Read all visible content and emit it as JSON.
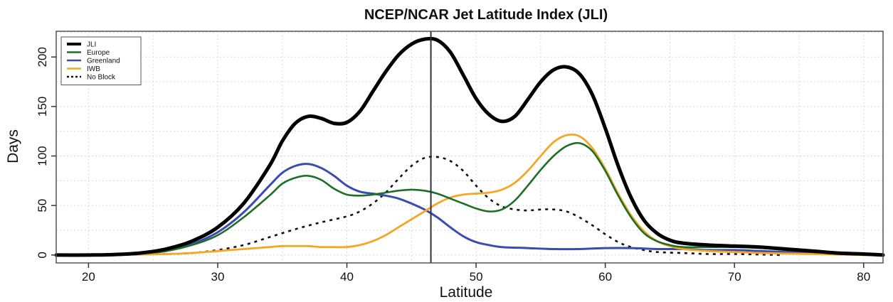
{
  "chart_data": {
    "type": "line",
    "title": "NCEP/NCAR Jet Latitude Index (JLI)",
    "xlabel": "Latitude",
    "ylabel": "Days",
    "xlim": [
      17.5,
      81.5
    ],
    "ylim": [
      -8,
      226
    ],
    "xticks": [
      20,
      30,
      40,
      50,
      60,
      70,
      80
    ],
    "yticks": [
      0,
      50,
      100,
      150,
      200
    ],
    "grid": true,
    "legend_position": "top-left",
    "vline": 46.5,
    "colors": {
      "JLI": "#000000",
      "Europe": "#1f6e27",
      "Greenland": "#3b4cb0",
      "IWB": "#f5a623",
      "No Block": "#111111",
      "vline": "#333333",
      "grid": "#d9d9d9",
      "frame": "#555555"
    },
    "series": [
      {
        "name": "JLI",
        "style": "solid",
        "points": [
          [
            17.5,
            0
          ],
          [
            20,
            0
          ],
          [
            22,
            0.5
          ],
          [
            24,
            2
          ],
          [
            26,
            6
          ],
          [
            28,
            14
          ],
          [
            30,
            28
          ],
          [
            32,
            52
          ],
          [
            34,
            90
          ],
          [
            35,
            115
          ],
          [
            36,
            133
          ],
          [
            37,
            140
          ],
          [
            38,
            138
          ],
          [
            39,
            133
          ],
          [
            40,
            134
          ],
          [
            41,
            145
          ],
          [
            42,
            165
          ],
          [
            43,
            185
          ],
          [
            44,
            202
          ],
          [
            45,
            213
          ],
          [
            46,
            218
          ],
          [
            47,
            217
          ],
          [
            48,
            205
          ],
          [
            49,
            182
          ],
          [
            50,
            158
          ],
          [
            51,
            142
          ],
          [
            52,
            135
          ],
          [
            53,
            140
          ],
          [
            54,
            157
          ],
          [
            55,
            175
          ],
          [
            56,
            187
          ],
          [
            57,
            190
          ],
          [
            58,
            183
          ],
          [
            59,
            162
          ],
          [
            60,
            128
          ],
          [
            61,
            90
          ],
          [
            62,
            58
          ],
          [
            63,
            35
          ],
          [
            64,
            22
          ],
          [
            65,
            15
          ],
          [
            66,
            12
          ],
          [
            68,
            10
          ],
          [
            70,
            9
          ],
          [
            72,
            8
          ],
          [
            74,
            6
          ],
          [
            76,
            4
          ],
          [
            78,
            2
          ],
          [
            80,
            1
          ],
          [
            81.5,
            0
          ]
        ]
      },
      {
        "name": "Europe",
        "style": "solid",
        "points": [
          [
            17.5,
            0
          ],
          [
            20,
            0
          ],
          [
            22,
            0.5
          ],
          [
            24,
            1.5
          ],
          [
            26,
            4
          ],
          [
            28,
            10
          ],
          [
            30,
            20
          ],
          [
            32,
            38
          ],
          [
            34,
            60
          ],
          [
            35,
            72
          ],
          [
            36,
            78
          ],
          [
            37,
            80
          ],
          [
            38,
            76
          ],
          [
            39,
            67
          ],
          [
            40,
            61
          ],
          [
            41,
            60
          ],
          [
            42,
            61
          ],
          [
            43,
            63
          ],
          [
            44,
            65
          ],
          [
            45,
            66
          ],
          [
            46,
            65
          ],
          [
            47,
            62
          ],
          [
            48,
            57
          ],
          [
            49,
            52
          ],
          [
            50,
            47
          ],
          [
            51,
            44
          ],
          [
            52,
            46
          ],
          [
            53,
            55
          ],
          [
            54,
            70
          ],
          [
            55,
            86
          ],
          [
            56,
            100
          ],
          [
            57,
            110
          ],
          [
            58,
            113
          ],
          [
            59,
            105
          ],
          [
            60,
            85
          ],
          [
            61,
            60
          ],
          [
            62,
            38
          ],
          [
            63,
            22
          ],
          [
            64,
            14
          ],
          [
            65,
            10
          ],
          [
            66,
            8
          ],
          [
            68,
            8
          ],
          [
            70,
            8
          ],
          [
            72,
            7
          ],
          [
            74,
            5
          ],
          [
            76,
            3
          ],
          [
            78,
            2
          ],
          [
            80,
            1
          ],
          [
            81.5,
            0
          ]
        ]
      },
      {
        "name": "Greenland",
        "style": "solid",
        "points": [
          [
            17.5,
            0
          ],
          [
            20,
            0
          ],
          [
            22,
            0.5
          ],
          [
            24,
            1.5
          ],
          [
            26,
            4
          ],
          [
            28,
            11
          ],
          [
            30,
            23
          ],
          [
            32,
            43
          ],
          [
            34,
            70
          ],
          [
            35,
            83
          ],
          [
            36,
            90
          ],
          [
            37,
            92
          ],
          [
            38,
            88
          ],
          [
            39,
            80
          ],
          [
            40,
            70
          ],
          [
            41,
            64
          ],
          [
            42,
            62
          ],
          [
            43,
            60
          ],
          [
            44,
            57
          ],
          [
            45,
            52
          ],
          [
            46,
            46
          ],
          [
            47,
            38
          ],
          [
            48,
            28
          ],
          [
            49,
            19
          ],
          [
            50,
            13
          ],
          [
            51,
            10
          ],
          [
            52,
            8
          ],
          [
            54,
            7
          ],
          [
            56,
            6
          ],
          [
            58,
            6
          ],
          [
            60,
            7
          ],
          [
            62,
            7
          ],
          [
            64,
            6
          ],
          [
            66,
            6
          ],
          [
            68,
            5
          ],
          [
            70,
            5
          ],
          [
            72,
            4
          ],
          [
            74,
            3
          ],
          [
            76,
            2
          ],
          [
            78,
            1
          ],
          [
            80,
            0.5
          ],
          [
            81.5,
            0
          ]
        ]
      },
      {
        "name": "IWB",
        "style": "solid",
        "points": [
          [
            17.5,
            0
          ],
          [
            20,
            0
          ],
          [
            24,
            0.5
          ],
          [
            26,
            1
          ],
          [
            28,
            2
          ],
          [
            30,
            4
          ],
          [
            32,
            6
          ],
          [
            34,
            8
          ],
          [
            35,
            9
          ],
          [
            36,
            9
          ],
          [
            37,
            9
          ],
          [
            38,
            8
          ],
          [
            39,
            8
          ],
          [
            40,
            8
          ],
          [
            41,
            10
          ],
          [
            42,
            14
          ],
          [
            43,
            20
          ],
          [
            44,
            28
          ],
          [
            45,
            36
          ],
          [
            46,
            44
          ],
          [
            47,
            52
          ],
          [
            48,
            58
          ],
          [
            49,
            61
          ],
          [
            50,
            62
          ],
          [
            51,
            63
          ],
          [
            52,
            66
          ],
          [
            53,
            73
          ],
          [
            54,
            85
          ],
          [
            55,
            100
          ],
          [
            56,
            114
          ],
          [
            57,
            121
          ],
          [
            58,
            120
          ],
          [
            59,
            108
          ],
          [
            60,
            87
          ],
          [
            61,
            62
          ],
          [
            62,
            40
          ],
          [
            63,
            24
          ],
          [
            64,
            14
          ],
          [
            65,
            9
          ],
          [
            66,
            6
          ],
          [
            68,
            4
          ],
          [
            70,
            3
          ],
          [
            72,
            2
          ],
          [
            74,
            1.5
          ],
          [
            76,
            1
          ],
          [
            78,
            0.5
          ],
          [
            80,
            0
          ],
          [
            81.5,
            0
          ]
        ]
      },
      {
        "name": "No Block",
        "style": "dotted",
        "points": [
          [
            17.5,
            0
          ],
          [
            20,
            0
          ],
          [
            22,
            0
          ],
          [
            24,
            0.5
          ],
          [
            26,
            1
          ],
          [
            28,
            2
          ],
          [
            30,
            5
          ],
          [
            32,
            10
          ],
          [
            34,
            18
          ],
          [
            36,
            26
          ],
          [
            38,
            33
          ],
          [
            40,
            39
          ],
          [
            41,
            44
          ],
          [
            42,
            52
          ],
          [
            43,
            63
          ],
          [
            44,
            77
          ],
          [
            45,
            90
          ],
          [
            46,
            98
          ],
          [
            47,
            99
          ],
          [
            48,
            95
          ],
          [
            49,
            85
          ],
          [
            50,
            70
          ],
          [
            51,
            57
          ],
          [
            52,
            49
          ],
          [
            53,
            46
          ],
          [
            54,
            45
          ],
          [
            55,
            46
          ],
          [
            56,
            46
          ],
          [
            57,
            44
          ],
          [
            58,
            38
          ],
          [
            59,
            30
          ],
          [
            60,
            21
          ],
          [
            61,
            13
          ],
          [
            62,
            8
          ],
          [
            63,
            5
          ],
          [
            64,
            3
          ],
          [
            66,
            2
          ],
          [
            68,
            1
          ],
          [
            70,
            1
          ],
          [
            72,
            0.5
          ],
          [
            73.5,
            0
          ]
        ]
      }
    ]
  }
}
